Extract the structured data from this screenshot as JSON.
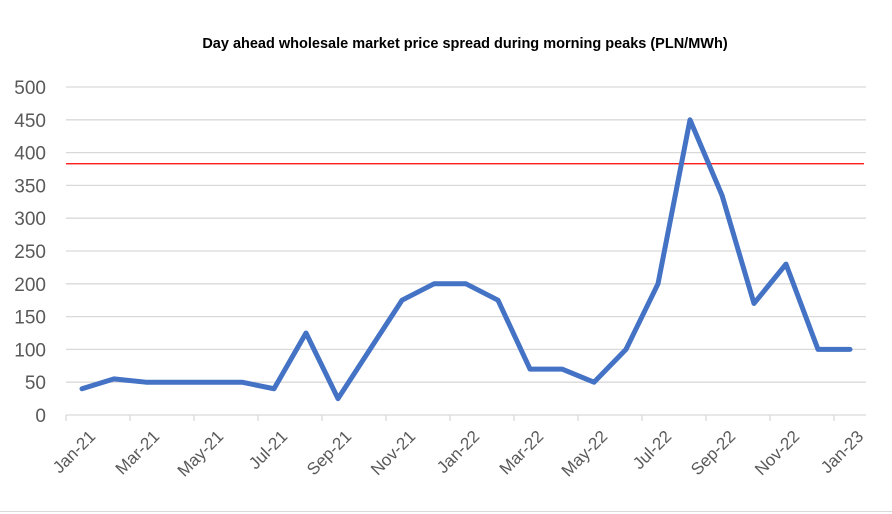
{
  "chart_data": {
    "type": "line",
    "title": "Day ahead wholesale market price spread during morning peaks (PLN/MWh)",
    "xlabel": "",
    "ylabel": "",
    "ylim": [
      0,
      500
    ],
    "yticks": [
      "0",
      "50",
      "100",
      "150",
      "200",
      "250",
      "300",
      "350",
      "400",
      "450",
      "500"
    ],
    "grid": true,
    "x": [
      "Jan-21",
      "Feb-21",
      "Mar-21",
      "Apr-21",
      "May-21",
      "Jun-21",
      "Jul-21",
      "Aug-21",
      "Sep-21",
      "Oct-21",
      "Nov-21",
      "Dec-21",
      "Jan-22",
      "Feb-22",
      "Mar-22",
      "Apr-22",
      "May-22",
      "Jun-22",
      "Jul-22",
      "Aug-22",
      "Sep-22",
      "Oct-22",
      "Nov-22",
      "Dec-22",
      "Jan-23"
    ],
    "xtick_labels": [
      "Jan-21",
      "Mar-21",
      "May-21",
      "Jul-21",
      "Sep-21",
      "Nov-21",
      "Jan-22",
      "Mar-22",
      "May-22",
      "Jul-22",
      "Sep-22",
      "Nov-22",
      "Jan-23"
    ],
    "series": [
      {
        "name": "Price spread",
        "color": "#4472c4",
        "values": [
          40,
          55,
          50,
          50,
          50,
          50,
          40,
          125,
          25,
          100,
          175,
          200,
          200,
          175,
          70,
          70,
          50,
          100,
          200,
          450,
          335,
          170,
          230,
          100,
          100
        ]
      }
    ],
    "reference_line": {
      "value": 383,
      "color": "#ff0000"
    }
  }
}
